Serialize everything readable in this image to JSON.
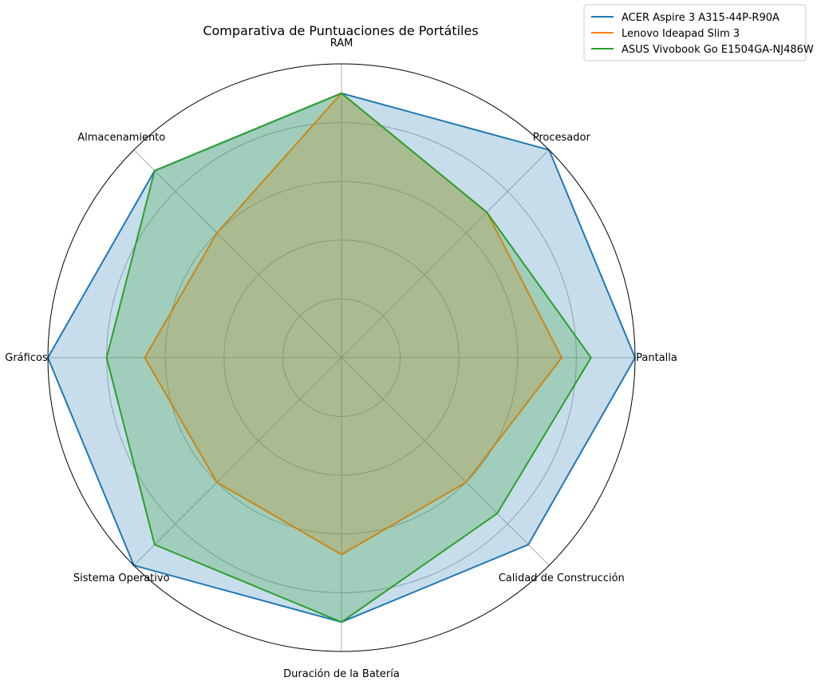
{
  "chart_data": {
    "type": "radar",
    "title": "Comparativa de Puntuaciones de Portátiles",
    "categories": [
      "RAM",
      "Procesador",
      "Pantalla",
      "Calidad de Construcción",
      "Duración de la Batería",
      "Sistema Operativo",
      "Gráficos",
      "Almacenamiento"
    ],
    "rlim": [
      0,
      10
    ],
    "radial_ticks": [
      2,
      4,
      6,
      8
    ],
    "radial_tick_labels_visible": false,
    "grid": true,
    "legend_position": "top-right",
    "series": [
      {
        "name": "ACER Aspire 3 A315-44P-R90A",
        "color": "#1f77b4",
        "values": [
          9,
          10,
          10,
          9,
          9,
          10,
          10,
          9
        ]
      },
      {
        "name": "Lenovo Ideapad Slim 3",
        "color": "#ff7f0e",
        "values": [
          9,
          7,
          7.5,
          6,
          6.7,
          6,
          6.7,
          6
        ]
      },
      {
        "name": "ASUS Vivobook Go E1504GA-NJ486W",
        "color": "#2ca02c",
        "values": [
          9,
          7,
          8.5,
          7.5,
          9,
          9,
          8,
          9
        ]
      }
    ]
  }
}
